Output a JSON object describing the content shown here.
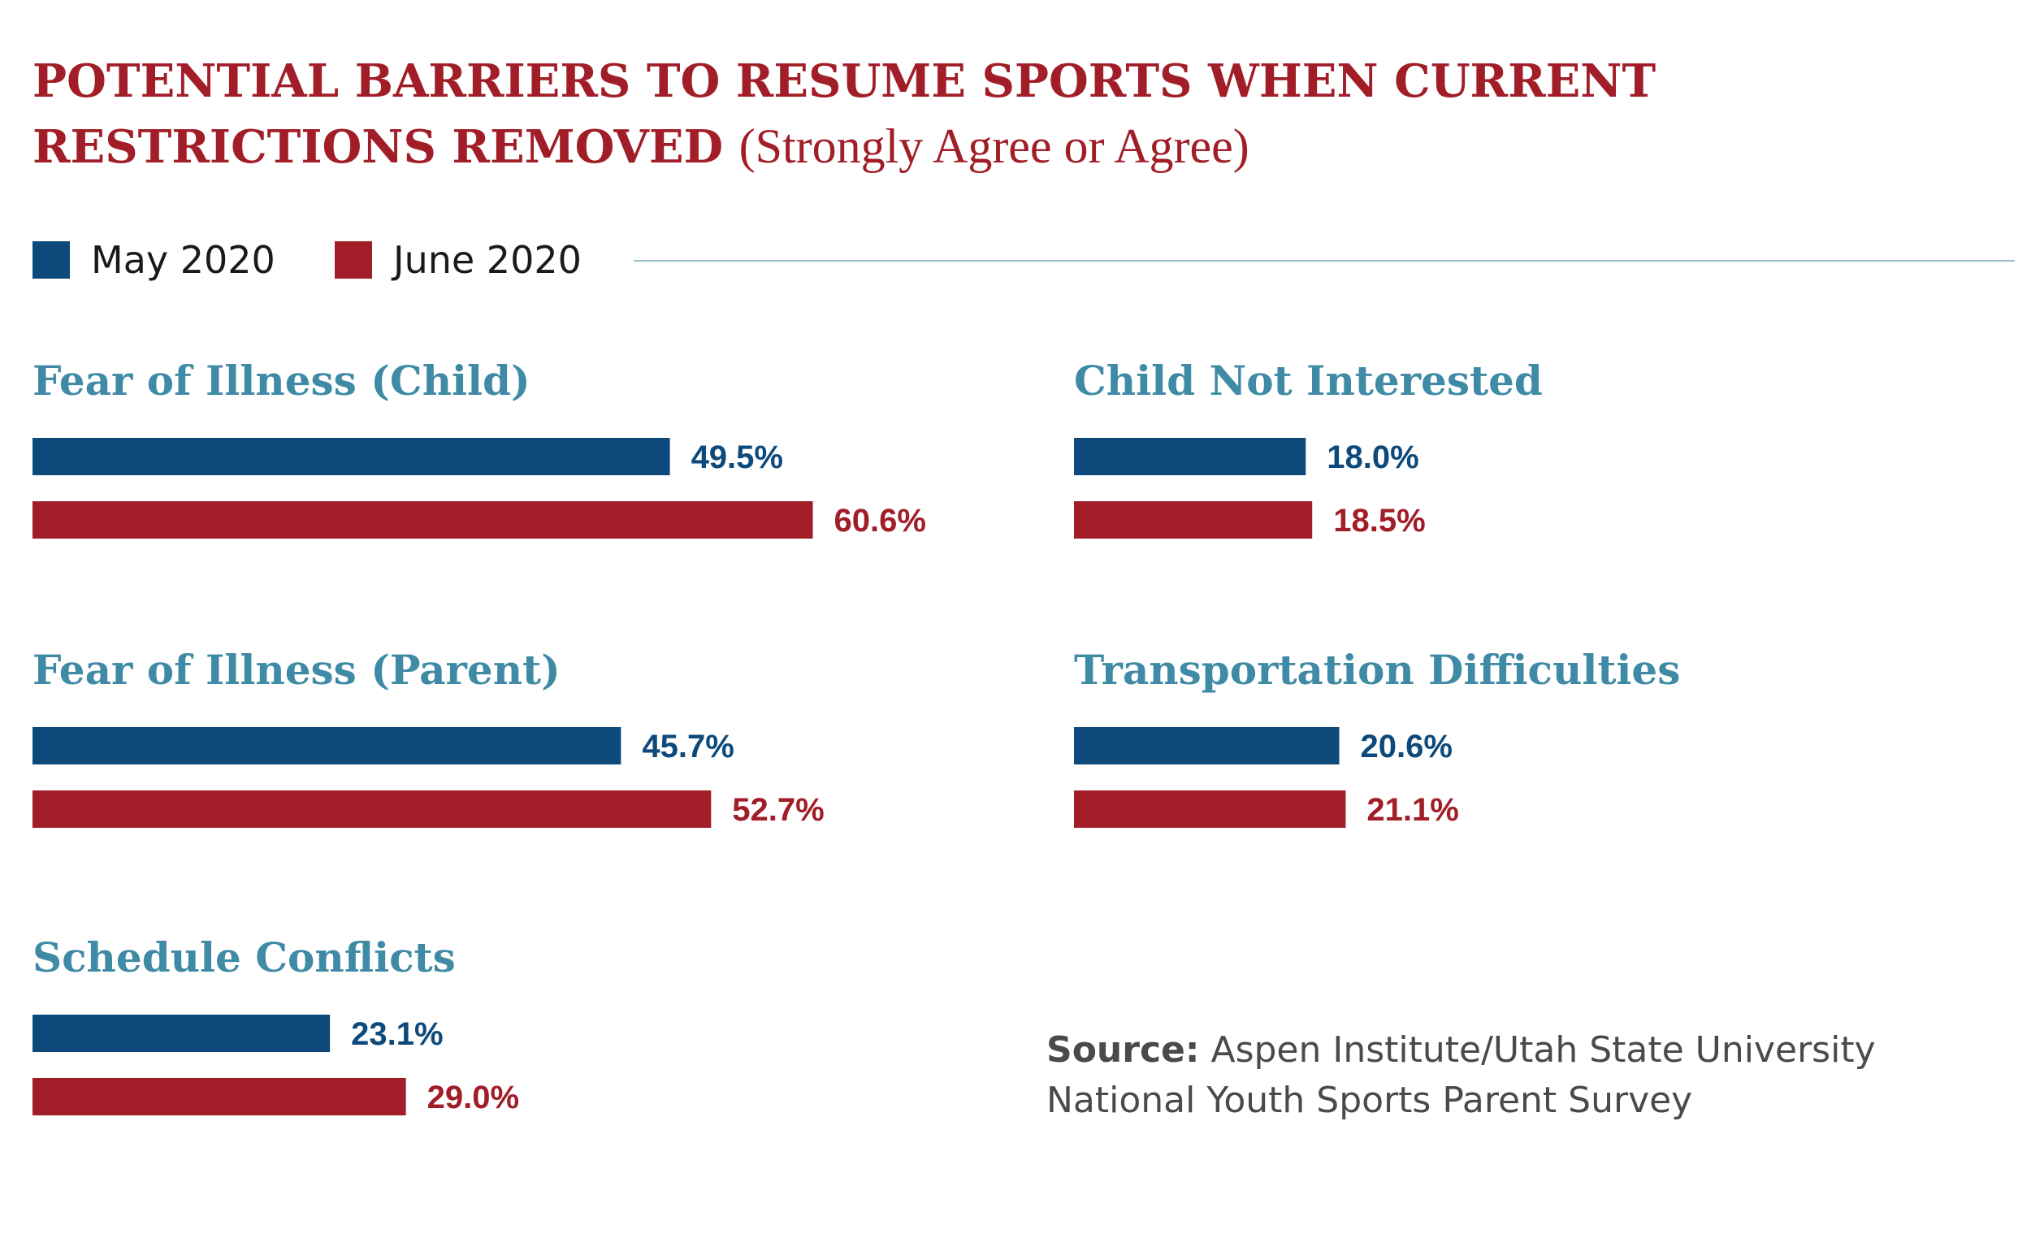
{
  "title": {
    "main": "POTENTIAL BARRIERS TO RESUME SPORTS WHEN CURRENT RESTRICTIONS REMOVED",
    "qualifier": "(Strongly Agree or Agree)"
  },
  "colors": {
    "may": "#0d4a7b",
    "june": "#a11d27",
    "panel_title": "#3f8aa5",
    "title": "#a11d27"
  },
  "chart_data": {
    "type": "bar",
    "orientation": "horizontal",
    "title": "POTENTIAL BARRIERS TO RESUME SPORTS WHEN CURRENT RESTRICTIONS REMOVED (Strongly Agree or Agree)",
    "legend": [
      "May 2020",
      "June 2020"
    ],
    "legend_placement": "top-left",
    "value_suffix": "%",
    "xlim": [
      0,
      100
    ],
    "grid": false,
    "panels": [
      {
        "title": "Fear of Illness (Child)",
        "series": [
          {
            "name": "May 2020",
            "value": 49.5,
            "label": "49.5%"
          },
          {
            "name": "June 2020",
            "value": 60.6,
            "label": "60.6%"
          }
        ]
      },
      {
        "title": "Child Not Interested",
        "series": [
          {
            "name": "May 2020",
            "value": 18.0,
            "label": "18.0%"
          },
          {
            "name": "June 2020",
            "value": 18.5,
            "label": "18.5%"
          }
        ]
      },
      {
        "title": "Fear of Illness (Parent)",
        "series": [
          {
            "name": "May 2020",
            "value": 45.7,
            "label": "45.7%"
          },
          {
            "name": "June 2020",
            "value": 52.7,
            "label": "52.7%"
          }
        ]
      },
      {
        "title": "Transportation Difficulties",
        "series": [
          {
            "name": "May 2020",
            "value": 20.6,
            "label": "20.6%"
          },
          {
            "name": "June 2020",
            "value": 21.1,
            "label": "21.1%"
          }
        ]
      },
      {
        "title": "Schedule Conflicts",
        "series": [
          {
            "name": "May 2020",
            "value": 23.1,
            "label": "23.1%"
          },
          {
            "name": "June 2020",
            "value": 29.0,
            "label": "29.0%"
          }
        ]
      }
    ]
  },
  "source": {
    "label": "Source:",
    "text": "Aspen Institute/Utah State University National Youth Sports Parent Survey"
  }
}
